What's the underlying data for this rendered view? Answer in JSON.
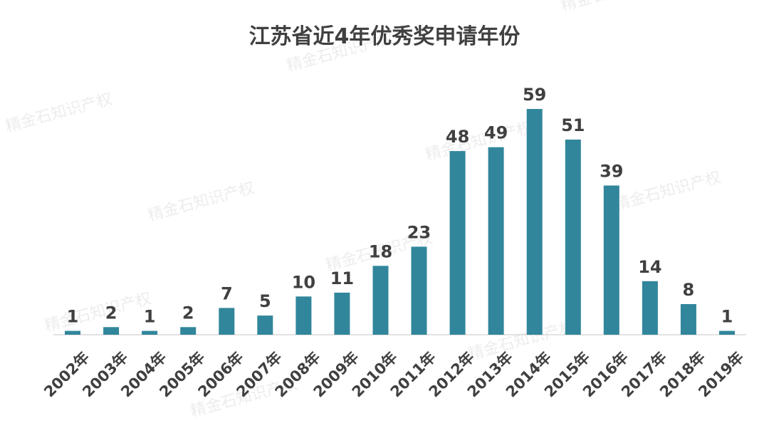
{
  "chart_data": {
    "type": "bar",
    "title": "江苏省近4年优秀奖申请年份",
    "categories": [
      "2002年",
      "2003年",
      "2004年",
      "2005年",
      "2006年",
      "2007年",
      "2008年",
      "2009年",
      "2010年",
      "2011年",
      "2012年",
      "2013年",
      "2014年",
      "2015年",
      "2016年",
      "2017年",
      "2018年",
      "2019年"
    ],
    "values": [
      1,
      2,
      1,
      2,
      7,
      5,
      10,
      11,
      18,
      23,
      48,
      49,
      59,
      51,
      39,
      14,
      8,
      1
    ],
    "ylim": [
      0,
      59
    ],
    "grid": false,
    "legend": "none",
    "bar_color": "#31869B",
    "label_color": "#404040"
  },
  "watermark": "精金石知识产权"
}
